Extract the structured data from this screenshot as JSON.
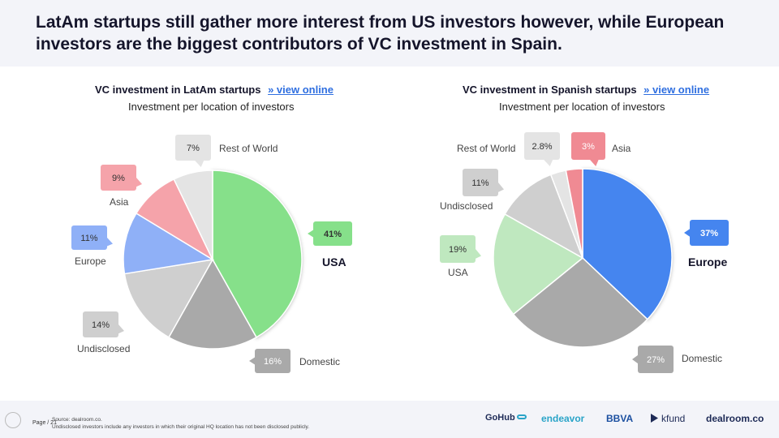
{
  "headline": "LatAm startups still gather more interest from US investors however, while European investors are the biggest contributors of VC investment in Spain.",
  "left_chart": {
    "title": "VC investment in LatAm startups",
    "link": "» view online",
    "subtitle": "Investment per location of investors"
  },
  "right_chart": {
    "title": "VC investment in Spanish startups",
    "link": "» view online",
    "subtitle": "Investment per location of investors"
  },
  "chart_data": [
    {
      "type": "pie",
      "title": "VC investment in LatAm startups",
      "subtitle": "Investment per location of investors",
      "slices": [
        {
          "label": "USA",
          "value": 41,
          "display": "41%",
          "color": "#86e08a",
          "highlight": true
        },
        {
          "label": "Domestic",
          "value": 16,
          "display": "16%",
          "color": "#a9a9a9"
        },
        {
          "label": "Undisclosed",
          "value": 14,
          "display": "14%",
          "color": "#cfcfcf"
        },
        {
          "label": "Europe",
          "value": 11,
          "display": "11%",
          "color": "#8fb0f7"
        },
        {
          "label": "Asia",
          "value": 9,
          "display": "9%",
          "color": "#f5a3aa"
        },
        {
          "label": "Rest of World",
          "value": 7,
          "display": "7%",
          "color": "#e4e4e4"
        }
      ]
    },
    {
      "type": "pie",
      "title": "VC investment in Spanish startups",
      "subtitle": "Investment per location of investors",
      "slices": [
        {
          "label": "Europe",
          "value": 37,
          "display": "37%",
          "color": "#4585ef",
          "highlight": true
        },
        {
          "label": "Domestic",
          "value": 27,
          "display": "27%",
          "color": "#a9a9a9"
        },
        {
          "label": "USA",
          "value": 19,
          "display": "19%",
          "color": "#bfe8bf"
        },
        {
          "label": "Undisclosed",
          "value": 11,
          "display": "11%",
          "color": "#cfcfcf"
        },
        {
          "label": "Rest of World",
          "value": 2.8,
          "display": "2.8%",
          "color": "#e4e4e4"
        },
        {
          "label": "Asia",
          "value": 3,
          "display": "3%",
          "color": "#f08a93"
        }
      ]
    }
  ],
  "footer": {
    "page": "Page / 21",
    "source_line1": "Source: dealroom.co.",
    "source_line2": "Undisclosed investors include any investors in which their original HQ location has not been disclosed publicly.",
    "logos": {
      "gohub": "GoHub",
      "endeavor": "endeavor",
      "bbva": "BBVA",
      "kfund": "kfund",
      "dealroom": "dealroom.co"
    }
  }
}
